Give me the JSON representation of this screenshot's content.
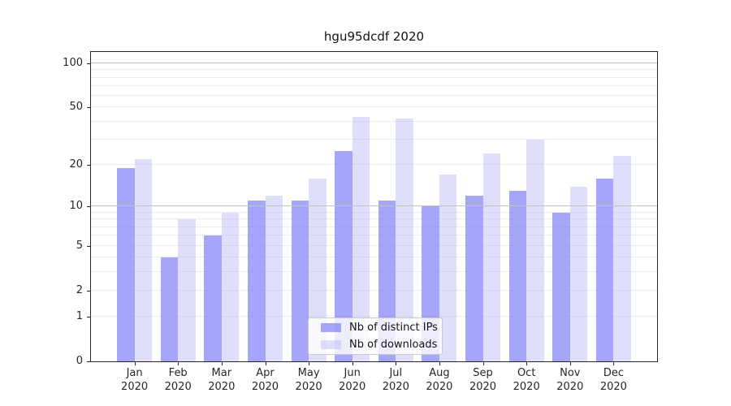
{
  "title": "hgu95dcdf 2020",
  "chart_data": {
    "type": "bar",
    "title": "hgu95dcdf 2020",
    "categories": [
      "Jan 2020",
      "Feb 2020",
      "Mar 2020",
      "Apr 2020",
      "May 2020",
      "Jun 2020",
      "Jul 2020",
      "Aug 2020",
      "Sep 2020",
      "Oct 2020",
      "Nov 2020",
      "Dec 2020"
    ],
    "series": [
      {
        "name": "Nb of distinct IPs",
        "color": "#8282f6",
        "opacity": 0.72,
        "values": [
          19,
          4,
          6,
          11,
          11,
          25,
          11,
          10,
          12,
          13,
          9,
          16
        ]
      },
      {
        "name": "Nb of downloads",
        "color": "#afaff5",
        "opacity": 0.4,
        "values": [
          22,
          8,
          9,
          12,
          16,
          43,
          42,
          17,
          24,
          30,
          14,
          23
        ]
      }
    ],
    "xlabel": "",
    "ylabel": "",
    "yscale": "log1p",
    "ylim": [
      0,
      121
    ],
    "yticks": [
      0,
      1,
      2,
      5,
      10,
      20,
      50,
      100
    ],
    "gridlines": {
      "minor": [
        1,
        2,
        3,
        4,
        5,
        6,
        7,
        8,
        9,
        20,
        30,
        40,
        50,
        60,
        70,
        80,
        90
      ],
      "major": [
        10,
        100
      ]
    },
    "grid_color_minor": "#ededed",
    "grid_color_major": "#c3c3c3",
    "axis_color": "#262626",
    "legend_position": "bottom-center",
    "grid": "on"
  },
  "legend": {
    "entries": [
      "Nb of distinct IPs",
      "Nb of downloads"
    ]
  }
}
